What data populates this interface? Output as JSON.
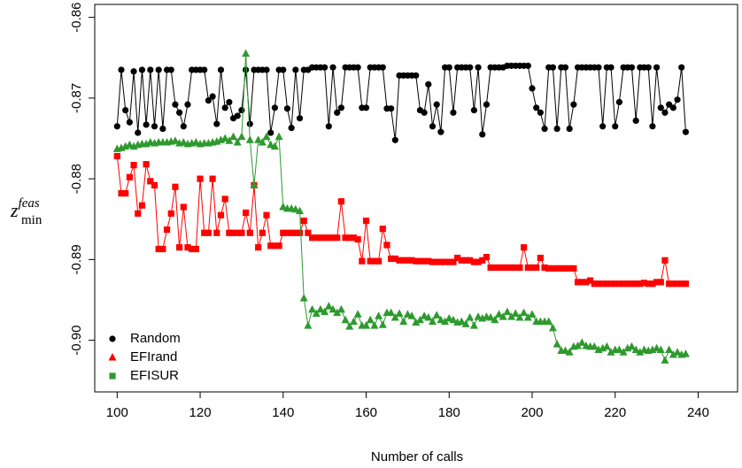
{
  "chart_data": {
    "type": "line",
    "xlabel": "Number of calls",
    "ylabel": {
      "base": "z",
      "sub": "min",
      "sup": "feas"
    },
    "xlim": [
      94.6,
      249.5
    ],
    "ylim": [
      -0.8584,
      -0.9064
    ],
    "xticks": [
      100,
      120,
      140,
      160,
      180,
      200,
      220,
      240
    ],
    "yticks": [
      -0.86,
      -0.87,
      -0.88,
      -0.89,
      {
        "value": -0.9,
        "label": "-0.90"
      }
    ],
    "legend": "bottom-left",
    "x": [
      100,
      101,
      102,
      103,
      104,
      105,
      106,
      107,
      108,
      109,
      110,
      111,
      112,
      113,
      114,
      115,
      116,
      117,
      118,
      119,
      120,
      121,
      122,
      123,
      124,
      125,
      126,
      127,
      128,
      129,
      130,
      131,
      132,
      133,
      134,
      135,
      136,
      137,
      138,
      139,
      140,
      141,
      142,
      143,
      144,
      145,
      146,
      147,
      148,
      149,
      150,
      151,
      152,
      153,
      154,
      155,
      156,
      157,
      158,
      159,
      160,
      161,
      162,
      163,
      164,
      165,
      166,
      167,
      168,
      169,
      170,
      171,
      172,
      173,
      174,
      175,
      176,
      177,
      178,
      179,
      180,
      181,
      182,
      183,
      184,
      185,
      186,
      187,
      188,
      189,
      190,
      191,
      192,
      193,
      194,
      195,
      196,
      197,
      198,
      199,
      200,
      201,
      202,
      203,
      204,
      205,
      206,
      207,
      208,
      209,
      210,
      211,
      212,
      213,
      214,
      215,
      216,
      217,
      218,
      219,
      220,
      221,
      222,
      223,
      224,
      225,
      226,
      227,
      228,
      229,
      230,
      231,
      232,
      233,
      234,
      235,
      236,
      237
    ],
    "series": [
      {
        "name": "Random",
        "color": "#000000",
        "marker": "circle",
        "legend_marker": "circle",
        "values": [
          -0.8735,
          -0.8665,
          -0.8715,
          -0.873,
          -0.8667,
          -0.8743,
          -0.8665,
          -0.8733,
          -0.8665,
          -0.8735,
          -0.8665,
          -0.8738,
          -0.8665,
          -0.8665,
          -0.8708,
          -0.8718,
          -0.8735,
          -0.8708,
          -0.8665,
          -0.8665,
          -0.8665,
          -0.8665,
          -0.8703,
          -0.8698,
          -0.8732,
          -0.8665,
          -0.8712,
          -0.8705,
          -0.8725,
          -0.8722,
          -0.8715,
          -0.8665,
          -0.8732,
          -0.8665,
          -0.8665,
          -0.8665,
          -0.8665,
          -0.8743,
          -0.8712,
          -0.8665,
          -0.8665,
          -0.8713,
          -0.8737,
          -0.8665,
          -0.8725,
          -0.8665,
          -0.8665,
          -0.8662,
          -0.8662,
          -0.8662,
          -0.8662,
          -0.8735,
          -0.8662,
          -0.8718,
          -0.8712,
          -0.8662,
          -0.8662,
          -0.8662,
          -0.8662,
          -0.8712,
          -0.8712,
          -0.8662,
          -0.8662,
          -0.8662,
          -0.8662,
          -0.8713,
          -0.8713,
          -0.8752,
          -0.8672,
          -0.8672,
          -0.8672,
          -0.8672,
          -0.8672,
          -0.8715,
          -0.8718,
          -0.8683,
          -0.8735,
          -0.8708,
          -0.8742,
          -0.8662,
          -0.8662,
          -0.8718,
          -0.8662,
          -0.8662,
          -0.8662,
          -0.8662,
          -0.8715,
          -0.8662,
          -0.8745,
          -0.8708,
          -0.8662,
          -0.8662,
          -0.8662,
          -0.8662,
          -0.866,
          -0.866,
          -0.866,
          -0.866,
          -0.866,
          -0.866,
          -0.8688,
          -0.8712,
          -0.8718,
          -0.8738,
          -0.8662,
          -0.8662,
          -0.8738,
          -0.8662,
          -0.8662,
          -0.8738,
          -0.8708,
          -0.8662,
          -0.8662,
          -0.8662,
          -0.8662,
          -0.8662,
          -0.8662,
          -0.8735,
          -0.8662,
          -0.8662,
          -0.8735,
          -0.8705,
          -0.8662,
          -0.8662,
          -0.8662,
          -0.8728,
          -0.8662,
          -0.8662,
          -0.8662,
          -0.8735,
          -0.8662,
          -0.8712,
          -0.8718,
          -0.8708,
          -0.8712,
          -0.8702,
          -0.8662,
          -0.8742
        ]
      },
      {
        "name": "EFIrand",
        "color": "#ff0000",
        "marker": "square",
        "legend_marker": "triangle",
        "values": [
          -0.8772,
          -0.8818,
          -0.8818,
          -0.8798,
          -0.8783,
          -0.8843,
          -0.8833,
          -0.8782,
          -0.8803,
          -0.8808,
          -0.8887,
          -0.8887,
          -0.8863,
          -0.8843,
          -0.881,
          -0.8885,
          -0.8835,
          -0.8885,
          -0.8887,
          -0.8887,
          -0.88,
          -0.8867,
          -0.8867,
          -0.88,
          -0.8867,
          -0.8845,
          -0.8825,
          -0.8867,
          -0.8867,
          -0.8867,
          -0.8867,
          -0.8842,
          -0.8867,
          -0.8808,
          -0.8885,
          -0.8867,
          -0.8845,
          -0.8883,
          -0.8883,
          -0.8883,
          -0.8867,
          -0.8867,
          -0.8867,
          -0.8867,
          -0.8867,
          -0.8852,
          -0.8867,
          -0.8873,
          -0.8873,
          -0.8873,
          -0.8873,
          -0.8873,
          -0.8873,
          -0.8873,
          -0.8828,
          -0.8873,
          -0.8873,
          -0.8873,
          -0.8875,
          -0.8902,
          -0.8852,
          -0.8902,
          -0.8902,
          -0.8902,
          -0.8862,
          -0.8882,
          -0.8899,
          -0.8899,
          -0.8901,
          -0.8901,
          -0.8901,
          -0.8901,
          -0.8902,
          -0.8902,
          -0.8902,
          -0.8902,
          -0.8903,
          -0.8903,
          -0.8903,
          -0.8903,
          -0.8903,
          -0.8903,
          -0.8898,
          -0.8901,
          -0.8901,
          -0.8901,
          -0.8903,
          -0.8903,
          -0.8901,
          -0.8897,
          -0.891,
          -0.891,
          -0.891,
          -0.891,
          -0.891,
          -0.891,
          -0.891,
          -0.891,
          -0.8885,
          -0.891,
          -0.891,
          -0.891,
          -0.8898,
          -0.891,
          -0.8911,
          -0.8911,
          -0.8911,
          -0.8911,
          -0.8911,
          -0.8911,
          -0.8911,
          -0.8928,
          -0.8928,
          -0.8928,
          -0.8926,
          -0.893,
          -0.893,
          -0.893,
          -0.893,
          -0.893,
          -0.893,
          -0.893,
          -0.893,
          -0.893,
          -0.893,
          -0.893,
          -0.893,
          -0.8929,
          -0.893,
          -0.893,
          -0.8928,
          -0.8928,
          -0.8901,
          -0.893,
          -0.893,
          -0.893,
          -0.893,
          -0.893
        ]
      },
      {
        "name": "EFISUR",
        "color": "#2e9a2e",
        "marker": "triangle",
        "legend_marker": "square",
        "values": [
          -0.8763,
          -0.8762,
          -0.876,
          -0.8758,
          -0.876,
          -0.8758,
          -0.8757,
          -0.8757,
          -0.8755,
          -0.8756,
          -0.8755,
          -0.8755,
          -0.8755,
          -0.8754,
          -0.8753,
          -0.8756,
          -0.8755,
          -0.8757,
          -0.8756,
          -0.8755,
          -0.8757,
          -0.8756,
          -0.8756,
          -0.8755,
          -0.8754,
          -0.8752,
          -0.875,
          -0.8753,
          -0.8748,
          -0.8755,
          -0.8748,
          -0.8645,
          -0.8752,
          -0.8808,
          -0.8752,
          -0.8755,
          -0.8748,
          -0.8758,
          -0.876,
          -0.8748,
          -0.8835,
          -0.8837,
          -0.8837,
          -0.8838,
          -0.884,
          -0.8948,
          -0.8982,
          -0.8962,
          -0.8967,
          -0.8962,
          -0.8965,
          -0.8958,
          -0.8962,
          -0.8966,
          -0.8962,
          -0.8975,
          -0.8983,
          -0.8977,
          -0.8968,
          -0.8982,
          -0.8982,
          -0.8975,
          -0.8982,
          -0.897,
          -0.8981,
          -0.8966,
          -0.8966,
          -0.8972,
          -0.8967,
          -0.8977,
          -0.8968,
          -0.897,
          -0.8978,
          -0.8975,
          -0.897,
          -0.8972,
          -0.8977,
          -0.8969,
          -0.8975,
          -0.8977,
          -0.8973,
          -0.8975,
          -0.8978,
          -0.8977,
          -0.898,
          -0.8972,
          -0.8982,
          -0.8971,
          -0.8973,
          -0.8971,
          -0.8972,
          -0.8975,
          -0.8968,
          -0.8971,
          -0.8965,
          -0.8971,
          -0.8967,
          -0.8972,
          -0.8966,
          -0.8972,
          -0.8968,
          -0.8977,
          -0.8977,
          -0.8977,
          -0.8977,
          -0.8985,
          -0.9005,
          -0.9013,
          -0.9013,
          -0.9015,
          -0.9008,
          -0.9007,
          -0.9003,
          -0.9007,
          -0.9008,
          -0.9008,
          -0.9012,
          -0.901,
          -0.9008,
          -0.9015,
          -0.9012,
          -0.9012,
          -0.9015,
          -0.901,
          -0.9008,
          -0.9012,
          -0.9015,
          -0.9012,
          -0.9013,
          -0.9012,
          -0.901,
          -0.9012,
          -0.9025,
          -0.9012,
          -0.9018,
          -0.9015,
          -0.9018,
          -0.9017
        ]
      }
    ]
  }
}
